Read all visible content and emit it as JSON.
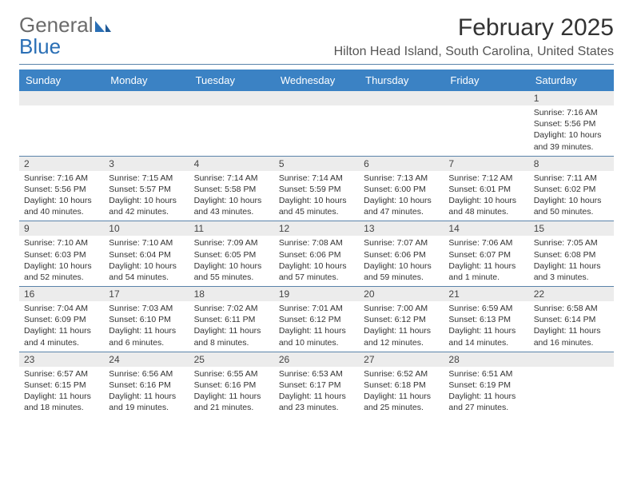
{
  "logo": {
    "text1": "General",
    "text2": "Blue"
  },
  "title": "February 2025",
  "location": "Hilton Head Island, South Carolina, United States",
  "colors": {
    "headerBar": "#3b82c4",
    "dayStripe": "#ececec",
    "rule": "#5a83aa",
    "logoGray": "#6b6b6b",
    "logoBlue": "#2a6fb5"
  },
  "daysOfWeek": [
    "Sunday",
    "Monday",
    "Tuesday",
    "Wednesday",
    "Thursday",
    "Friday",
    "Saturday"
  ],
  "weeks": [
    [
      null,
      null,
      null,
      null,
      null,
      null,
      {
        "n": "1",
        "sunrise": "Sunrise: 7:16 AM",
        "sunset": "Sunset: 5:56 PM",
        "daylight": "Daylight: 10 hours and 39 minutes."
      }
    ],
    [
      {
        "n": "2",
        "sunrise": "Sunrise: 7:16 AM",
        "sunset": "Sunset: 5:56 PM",
        "daylight": "Daylight: 10 hours and 40 minutes."
      },
      {
        "n": "3",
        "sunrise": "Sunrise: 7:15 AM",
        "sunset": "Sunset: 5:57 PM",
        "daylight": "Daylight: 10 hours and 42 minutes."
      },
      {
        "n": "4",
        "sunrise": "Sunrise: 7:14 AM",
        "sunset": "Sunset: 5:58 PM",
        "daylight": "Daylight: 10 hours and 43 minutes."
      },
      {
        "n": "5",
        "sunrise": "Sunrise: 7:14 AM",
        "sunset": "Sunset: 5:59 PM",
        "daylight": "Daylight: 10 hours and 45 minutes."
      },
      {
        "n": "6",
        "sunrise": "Sunrise: 7:13 AM",
        "sunset": "Sunset: 6:00 PM",
        "daylight": "Daylight: 10 hours and 47 minutes."
      },
      {
        "n": "7",
        "sunrise": "Sunrise: 7:12 AM",
        "sunset": "Sunset: 6:01 PM",
        "daylight": "Daylight: 10 hours and 48 minutes."
      },
      {
        "n": "8",
        "sunrise": "Sunrise: 7:11 AM",
        "sunset": "Sunset: 6:02 PM",
        "daylight": "Daylight: 10 hours and 50 minutes."
      }
    ],
    [
      {
        "n": "9",
        "sunrise": "Sunrise: 7:10 AM",
        "sunset": "Sunset: 6:03 PM",
        "daylight": "Daylight: 10 hours and 52 minutes."
      },
      {
        "n": "10",
        "sunrise": "Sunrise: 7:10 AM",
        "sunset": "Sunset: 6:04 PM",
        "daylight": "Daylight: 10 hours and 54 minutes."
      },
      {
        "n": "11",
        "sunrise": "Sunrise: 7:09 AM",
        "sunset": "Sunset: 6:05 PM",
        "daylight": "Daylight: 10 hours and 55 minutes."
      },
      {
        "n": "12",
        "sunrise": "Sunrise: 7:08 AM",
        "sunset": "Sunset: 6:06 PM",
        "daylight": "Daylight: 10 hours and 57 minutes."
      },
      {
        "n": "13",
        "sunrise": "Sunrise: 7:07 AM",
        "sunset": "Sunset: 6:06 PM",
        "daylight": "Daylight: 10 hours and 59 minutes."
      },
      {
        "n": "14",
        "sunrise": "Sunrise: 7:06 AM",
        "sunset": "Sunset: 6:07 PM",
        "daylight": "Daylight: 11 hours and 1 minute."
      },
      {
        "n": "15",
        "sunrise": "Sunrise: 7:05 AM",
        "sunset": "Sunset: 6:08 PM",
        "daylight": "Daylight: 11 hours and 3 minutes."
      }
    ],
    [
      {
        "n": "16",
        "sunrise": "Sunrise: 7:04 AM",
        "sunset": "Sunset: 6:09 PM",
        "daylight": "Daylight: 11 hours and 4 minutes."
      },
      {
        "n": "17",
        "sunrise": "Sunrise: 7:03 AM",
        "sunset": "Sunset: 6:10 PM",
        "daylight": "Daylight: 11 hours and 6 minutes."
      },
      {
        "n": "18",
        "sunrise": "Sunrise: 7:02 AM",
        "sunset": "Sunset: 6:11 PM",
        "daylight": "Daylight: 11 hours and 8 minutes."
      },
      {
        "n": "19",
        "sunrise": "Sunrise: 7:01 AM",
        "sunset": "Sunset: 6:12 PM",
        "daylight": "Daylight: 11 hours and 10 minutes."
      },
      {
        "n": "20",
        "sunrise": "Sunrise: 7:00 AM",
        "sunset": "Sunset: 6:12 PM",
        "daylight": "Daylight: 11 hours and 12 minutes."
      },
      {
        "n": "21",
        "sunrise": "Sunrise: 6:59 AM",
        "sunset": "Sunset: 6:13 PM",
        "daylight": "Daylight: 11 hours and 14 minutes."
      },
      {
        "n": "22",
        "sunrise": "Sunrise: 6:58 AM",
        "sunset": "Sunset: 6:14 PM",
        "daylight": "Daylight: 11 hours and 16 minutes."
      }
    ],
    [
      {
        "n": "23",
        "sunrise": "Sunrise: 6:57 AM",
        "sunset": "Sunset: 6:15 PM",
        "daylight": "Daylight: 11 hours and 18 minutes."
      },
      {
        "n": "24",
        "sunrise": "Sunrise: 6:56 AM",
        "sunset": "Sunset: 6:16 PM",
        "daylight": "Daylight: 11 hours and 19 minutes."
      },
      {
        "n": "25",
        "sunrise": "Sunrise: 6:55 AM",
        "sunset": "Sunset: 6:16 PM",
        "daylight": "Daylight: 11 hours and 21 minutes."
      },
      {
        "n": "26",
        "sunrise": "Sunrise: 6:53 AM",
        "sunset": "Sunset: 6:17 PM",
        "daylight": "Daylight: 11 hours and 23 minutes."
      },
      {
        "n": "27",
        "sunrise": "Sunrise: 6:52 AM",
        "sunset": "Sunset: 6:18 PM",
        "daylight": "Daylight: 11 hours and 25 minutes."
      },
      {
        "n": "28",
        "sunrise": "Sunrise: 6:51 AM",
        "sunset": "Sunset: 6:19 PM",
        "daylight": "Daylight: 11 hours and 27 minutes."
      },
      null
    ]
  ]
}
